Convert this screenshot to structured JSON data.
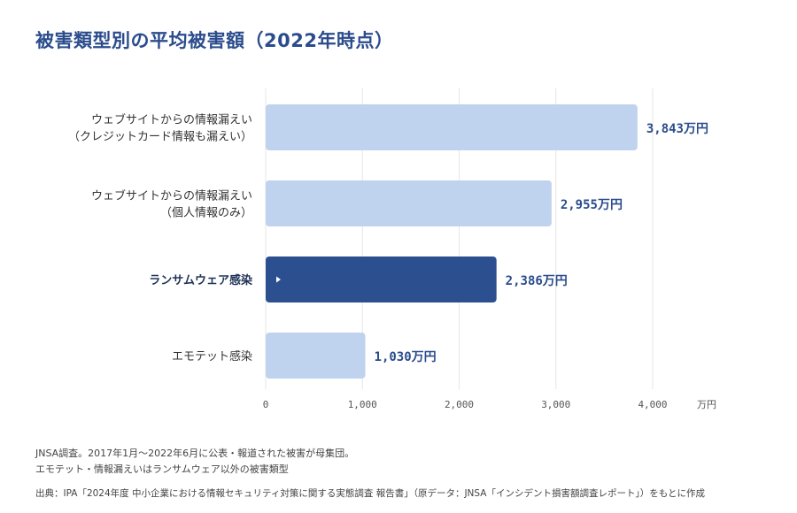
{
  "chart_data": {
    "type": "bar",
    "orientation": "horizontal",
    "title": "被害類型別の平均被害額（2022年時点）",
    "categories": [
      [
        "ウェブサイトからの情報漏えい",
        "（クレジットカード情報も漏えい）"
      ],
      [
        "ウェブサイトからの情報漏えい",
        "（個人情報のみ）"
      ],
      [
        "ランサムウェア感染"
      ],
      [
        "エモテット感染"
      ]
    ],
    "values": [
      3843,
      2955,
      2386,
      1030
    ],
    "value_labels": [
      "3,843万円",
      "2,955万円",
      "2,386万円",
      "1,030万円"
    ],
    "highlight_index": 2,
    "xlim": [
      0,
      4000
    ],
    "x_ticks": [
      0,
      1000,
      2000,
      3000,
      4000
    ],
    "x_tick_labels": [
      "0",
      "1,000",
      "2,000",
      "3,000",
      "4,000"
    ],
    "x_unit": "万円",
    "grid": true,
    "colors": {
      "bar": "#bfd3ee",
      "highlight": "#2c4f8f",
      "label": "#2b4c8c",
      "grid": "#e6e6e6"
    }
  },
  "notes": [
    "JNSA調査。2017年1月〜2022年6月に公表・報道された被害が母集団。",
    "エモテット・情報漏えいはランサムウェア以外の被害類型"
  ],
  "source": "出典：IPA「2024年度 中小企業における情報セキュリティ対策に関する実態調査 報告書」（原データ：JNSA「インシデント損害額調査レポート」）をもとに作成"
}
